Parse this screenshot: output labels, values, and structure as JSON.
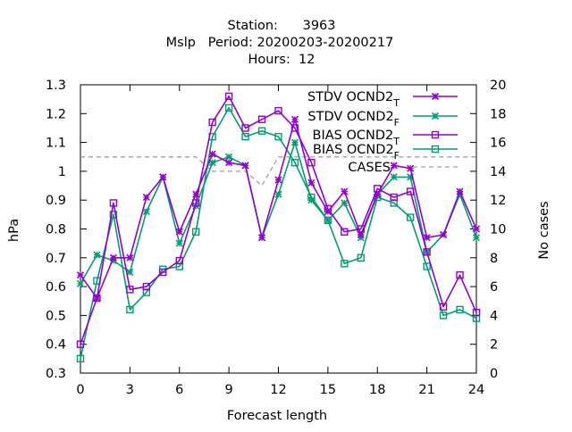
{
  "chart_data": {
    "type": "line",
    "title_lines": [
      "Station:      3963",
      "Mslp   Period: 20200203-20200217",
      "Hours:  12"
    ],
    "xlabel": "Forecast length",
    "ylabel": "hPa",
    "y2label": "No cases",
    "xlim": [
      0,
      24
    ],
    "ylim": [
      0.3,
      1.3
    ],
    "y2lim": [
      0,
      20
    ],
    "xticks": [
      0,
      3,
      6,
      9,
      12,
      15,
      18,
      21,
      24
    ],
    "yticks": [
      0.3,
      0.4,
      0.5,
      0.6,
      0.7,
      0.8,
      0.9,
      1,
      1.1,
      1.2,
      1.3
    ],
    "y2ticks": [
      0,
      2,
      4,
      6,
      8,
      10,
      12,
      14,
      16,
      18,
      20
    ],
    "grid": false,
    "legend_position": "top-right",
    "x": [
      0,
      1,
      2,
      3,
      4,
      5,
      6,
      7,
      8,
      9,
      10,
      11,
      12,
      13,
      14,
      15,
      16,
      17,
      18,
      19,
      20,
      21,
      22,
      23,
      24
    ],
    "series": [
      {
        "name": "STDV OCND2",
        "subscript": "T",
        "color": "#9400d3",
        "marker": "x",
        "axis": "y",
        "values": [
          0.64,
          0.56,
          0.7,
          0.7,
          0.91,
          0.98,
          0.79,
          0.92,
          1.06,
          1.03,
          1.02,
          0.77,
          0.97,
          1.18,
          0.96,
          0.86,
          0.93,
          0.78,
          0.92,
          1.02,
          1.01,
          0.77,
          0.78,
          0.93,
          0.8
        ]
      },
      {
        "name": "STDV OCND2",
        "subscript": "F",
        "color": "#009e73",
        "marker": "x",
        "axis": "y",
        "values": [
          0.61,
          0.71,
          0.69,
          0.65,
          0.86,
          0.98,
          0.75,
          0.88,
          1.03,
          1.05,
          1.02,
          0.77,
          0.92,
          1.1,
          0.9,
          0.83,
          0.89,
          0.77,
          0.92,
          0.98,
          0.98,
          0.72,
          0.78,
          0.92,
          0.77
        ]
      },
      {
        "name": "BIAS OCND2",
        "subscript": "T",
        "color": "#9400d3",
        "marker": "square",
        "axis": "y",
        "values": [
          0.4,
          0.56,
          0.89,
          0.59,
          0.6,
          0.65,
          0.69,
          0.89,
          1.17,
          1.26,
          1.15,
          1.18,
          1.21,
          1.15,
          1.03,
          0.87,
          0.79,
          0.8,
          0.94,
          0.91,
          0.93,
          0.72,
          0.53,
          0.64,
          0.51
        ]
      },
      {
        "name": "BIAS OCND2",
        "subscript": "F",
        "color": "#009e73",
        "marker": "square",
        "axis": "y",
        "values": [
          0.35,
          0.62,
          0.85,
          0.52,
          0.58,
          0.66,
          0.67,
          0.79,
          1.12,
          1.22,
          1.12,
          1.14,
          1.12,
          1.03,
          0.91,
          0.83,
          0.68,
          0.7,
          0.91,
          0.89,
          0.84,
          0.67,
          0.5,
          0.52,
          0.49
        ]
      },
      {
        "name": "CASES",
        "subscript": "",
        "color": "#a0a0a0",
        "marker": "none",
        "dashed": true,
        "axis": "y2",
        "values": [
          15,
          15,
          15,
          15,
          15,
          15,
          15,
          15,
          14,
          14,
          14,
          13,
          15,
          15,
          15,
          15,
          15,
          15,
          15,
          15,
          15,
          15,
          15,
          15,
          15
        ]
      }
    ]
  }
}
